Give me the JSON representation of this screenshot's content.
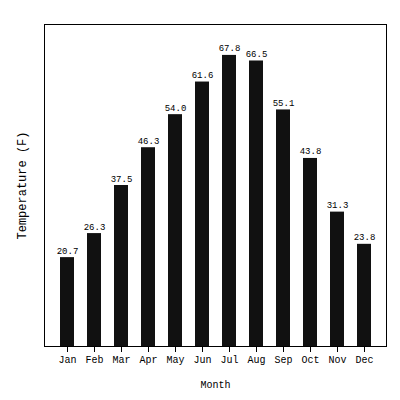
{
  "chart_data": {
    "type": "bar",
    "categories": [
      "Jan",
      "Feb",
      "Mar",
      "Apr",
      "May",
      "Jun",
      "Jul",
      "Aug",
      "Sep",
      "Oct",
      "Nov",
      "Dec"
    ],
    "values": [
      20.7,
      26.3,
      37.5,
      46.3,
      54.0,
      61.6,
      67.8,
      66.5,
      55.1,
      43.8,
      31.3,
      23.8
    ],
    "value_labels": [
      "20.7",
      "26.3",
      "37.5",
      "46.3",
      "54.0",
      "61.6",
      "67.8",
      "66.5",
      "55.1",
      "43.8",
      "31.3",
      "23.8"
    ],
    "color": "#111111",
    "x_label": "Month",
    "y_label": "Temperature (F)",
    "ylim": [
      0,
      75
    ],
    "grid": false,
    "data_labels": true,
    "tick_labels": "x"
  }
}
